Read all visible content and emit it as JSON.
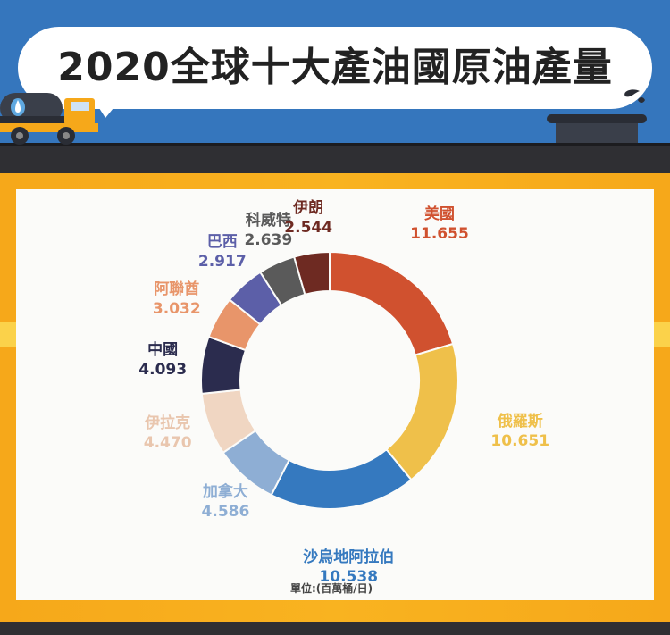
{
  "chart_data": {
    "type": "pie",
    "title": "2020全球十大產油國原油產量",
    "unit": "單位:(百萬桶/日)",
    "series": [
      {
        "name": "美國",
        "value": 11.655,
        "value_label": "11.655",
        "color": "#d0512f"
      },
      {
        "name": "俄羅斯",
        "value": 10.651,
        "value_label": "10.651",
        "color": "#efc04a"
      },
      {
        "name": "沙烏地阿拉伯",
        "value": 10.538,
        "value_label": "10.538",
        "color": "#3579bf"
      },
      {
        "name": "加拿大",
        "value": 4.586,
        "value_label": "4.586",
        "color": "#8eaed4"
      },
      {
        "name": "伊拉克",
        "value": 4.47,
        "value_label": "4.470",
        "color": "#f0d6c2"
      },
      {
        "name": "中國",
        "value": 4.093,
        "value_label": "4.093",
        "color": "#2b2c4e"
      },
      {
        "name": "阿聯酋",
        "value": 3.032,
        "value_label": "3.032",
        "color": "#e8956a"
      },
      {
        "name": "巴西",
        "value": 2.917,
        "value_label": "2.917",
        "color": "#5c5fa8"
      },
      {
        "name": "科威特",
        "value": 2.639,
        "value_label": "2.639",
        "color": "#5a5a5a"
      },
      {
        "name": "伊朗",
        "value": 2.544,
        "value_label": "2.544",
        "color": "#6e2a22"
      }
    ]
  },
  "colors": {
    "header_blue": "#3576bd",
    "road": "#2f2f33",
    "band_orange": "#f6a81a"
  }
}
